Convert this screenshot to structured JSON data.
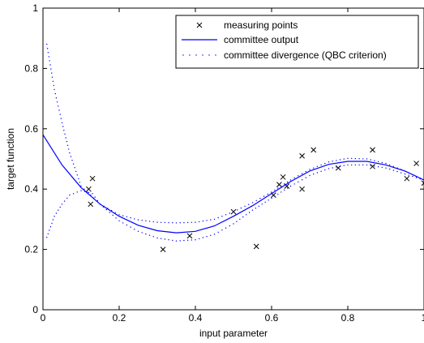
{
  "chart_data": {
    "type": "scatter",
    "title": "",
    "xlabel": "input parameter",
    "ylabel": "target function",
    "xlim": [
      0,
      1
    ],
    "ylim": [
      0,
      1
    ],
    "xticks": [
      0,
      0.2,
      0.4,
      0.6,
      0.8,
      1
    ],
    "yticks": [
      0,
      0.2,
      0.4,
      0.6,
      0.8,
      1
    ],
    "xtick_labels": [
      "0",
      "0.2",
      "0.4",
      "0.6",
      "0.8",
      "1"
    ],
    "ytick_labels": [
      "0",
      "0.2",
      "0.4",
      "0.6",
      "0.8",
      "1"
    ],
    "grid": false,
    "legend_position": "top-right",
    "legend": [
      {
        "label": "measuring points",
        "marker": "x",
        "color": "#000000"
      },
      {
        "label": "committee output",
        "line": "solid",
        "color": "#0000ff"
      },
      {
        "label": "committee divergence (QBC criterion)",
        "line": "dotted",
        "color": "#0000ff"
      }
    ],
    "series": [
      {
        "name": "measuring points",
        "kind": "markers",
        "color": "#000000",
        "x": [
          0.12,
          0.125,
          0.13,
          0.315,
          0.385,
          0.5,
          0.56,
          0.605,
          0.62,
          0.63,
          0.64,
          0.68,
          0.68,
          0.71,
          0.775,
          0.865,
          0.865,
          0.955,
          0.98,
          1.0
        ],
        "y": [
          0.4,
          0.35,
          0.435,
          0.2,
          0.245,
          0.325,
          0.21,
          0.38,
          0.415,
          0.44,
          0.41,
          0.51,
          0.4,
          0.53,
          0.47,
          0.53,
          0.475,
          0.435,
          0.485,
          0.42
        ]
      },
      {
        "name": "committee output",
        "kind": "line",
        "color": "#0000ff",
        "x": [
          0,
          0.05,
          0.1,
          0.15,
          0.2,
          0.25,
          0.3,
          0.35,
          0.4,
          0.45,
          0.5,
          0.55,
          0.6,
          0.65,
          0.7,
          0.75,
          0.8,
          0.85,
          0.9,
          0.95,
          1.0
        ],
        "y": [
          0.58,
          0.48,
          0.405,
          0.35,
          0.31,
          0.28,
          0.262,
          0.255,
          0.26,
          0.278,
          0.31,
          0.345,
          0.385,
          0.425,
          0.46,
          0.482,
          0.492,
          0.492,
          0.48,
          0.46,
          0.43
        ]
      },
      {
        "name": "committee divergence upper",
        "kind": "dotted",
        "color": "#0000ff",
        "x": [
          0.01,
          0.03,
          0.05,
          0.07,
          0.1,
          0.15,
          0.2,
          0.25,
          0.3,
          0.35,
          0.4,
          0.45,
          0.5,
          0.55,
          0.6,
          0.65,
          0.7,
          0.75,
          0.8,
          0.85,
          0.9,
          0.95,
          1.0
        ],
        "y": [
          0.88,
          0.73,
          0.62,
          0.52,
          0.41,
          0.35,
          0.315,
          0.298,
          0.29,
          0.288,
          0.29,
          0.3,
          0.325,
          0.355,
          0.39,
          0.43,
          0.465,
          0.49,
          0.502,
          0.5,
          0.485,
          0.46,
          0.43
        ]
      },
      {
        "name": "committee divergence lower",
        "kind": "dotted",
        "color": "#0000ff",
        "x": [
          0.01,
          0.03,
          0.05,
          0.07,
          0.1,
          0.13,
          0.15,
          0.2,
          0.25,
          0.3,
          0.35,
          0.4,
          0.45,
          0.5,
          0.55,
          0.6,
          0.65,
          0.7,
          0.75,
          0.8,
          0.85,
          0.9,
          0.95,
          1.0
        ],
        "y": [
          0.24,
          0.31,
          0.35,
          0.38,
          0.395,
          0.385,
          0.35,
          0.295,
          0.26,
          0.238,
          0.228,
          0.232,
          0.25,
          0.285,
          0.33,
          0.37,
          0.41,
          0.445,
          0.468,
          0.48,
          0.48,
          0.47,
          0.45,
          0.43
        ]
      }
    ]
  }
}
